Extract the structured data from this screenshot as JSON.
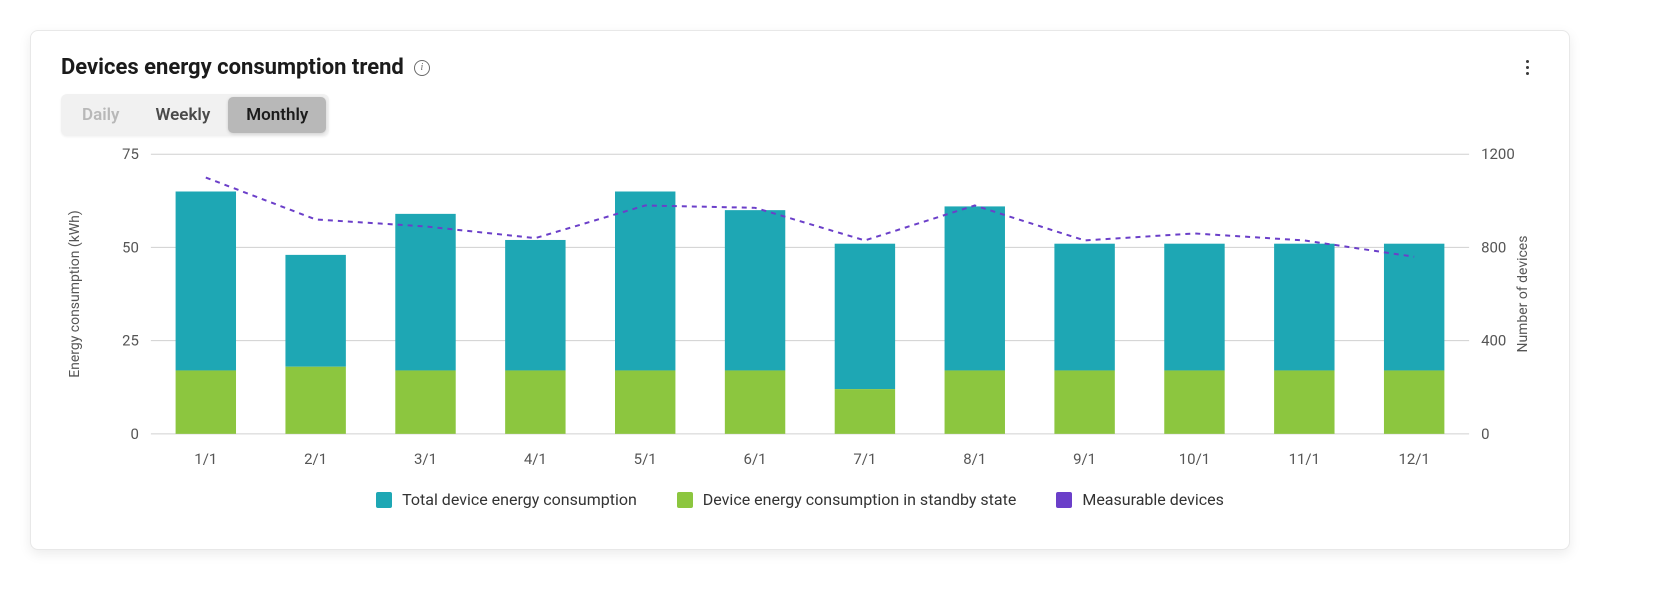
{
  "card": {
    "title": "Devices energy consumption trend",
    "tabs": [
      "Daily",
      "Weekly",
      "Monthly"
    ],
    "active_tab_index": 2,
    "disabled_tab_indices": [
      0
    ]
  },
  "chart": {
    "type": "bar+line",
    "categories": [
      "1/1",
      "2/1",
      "3/1",
      "4/1",
      "5/1",
      "6/1",
      "7/1",
      "8/1",
      "9/1",
      "10/1",
      "11/1",
      "12/1"
    ],
    "series": {
      "standby": {
        "label": "Device energy consumption in standby state",
        "values": [
          17,
          18,
          17,
          17,
          17,
          17,
          12,
          17,
          17,
          17,
          17,
          17
        ],
        "color": "#8cc63f"
      },
      "total": {
        "label": "Total device energy consumption",
        "values": [
          65,
          48,
          59,
          52,
          65,
          60,
          51,
          61,
          51,
          51,
          51,
          51
        ],
        "color": "#1ea7b4"
      },
      "devices_line": {
        "label": "Measurable devices",
        "values": [
          1100,
          920,
          890,
          840,
          980,
          970,
          830,
          980,
          830,
          860,
          830,
          760
        ],
        "color": "#6b3fc9",
        "dash": "5,5",
        "line_width": 2
      }
    },
    "y_left": {
      "label": "Energy consumption (kWh)",
      "min": 0,
      "max": 75,
      "step": 25,
      "ticks": [
        0,
        25,
        50,
        75
      ]
    },
    "y_right": {
      "label": "Number of devices",
      "min": 0,
      "max": 1200,
      "step": 400,
      "ticks": [
        0,
        400,
        800,
        1200
      ]
    },
    "style": {
      "background": "#ffffff",
      "grid_color": "#d0d0d0",
      "axis_text_color": "#555555",
      "tick_fontsize": 15,
      "label_fontsize": 14,
      "bar_width_ratio": 0.55
    }
  }
}
